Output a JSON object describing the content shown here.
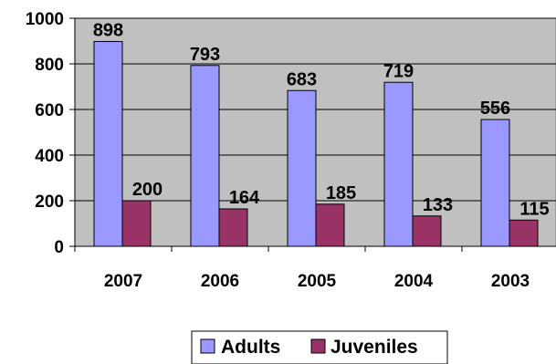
{
  "chart_data": {
    "type": "bar",
    "categories": [
      "2007",
      "2006",
      "2005",
      "2004",
      "2003"
    ],
    "series": [
      {
        "name": "Adults",
        "values": [
          898,
          793,
          683,
          719,
          556
        ],
        "color": "#9999ff"
      },
      {
        "name": "Juveniles",
        "values": [
          200,
          164,
          185,
          133,
          115
        ],
        "color": "#993366"
      }
    ],
    "data_labels": [
      [
        "898",
        "793",
        "683",
        "719",
        "556"
      ],
      [
        "200",
        "164",
        "185",
        "133",
        "115"
      ]
    ],
    "y_ticks": [
      "0",
      "200",
      "400",
      "600",
      "800",
      "1000"
    ],
    "ylim": [
      0,
      1000
    ],
    "plot_background": "#c0c0c0",
    "grid": true,
    "legend_position": "bottom"
  }
}
